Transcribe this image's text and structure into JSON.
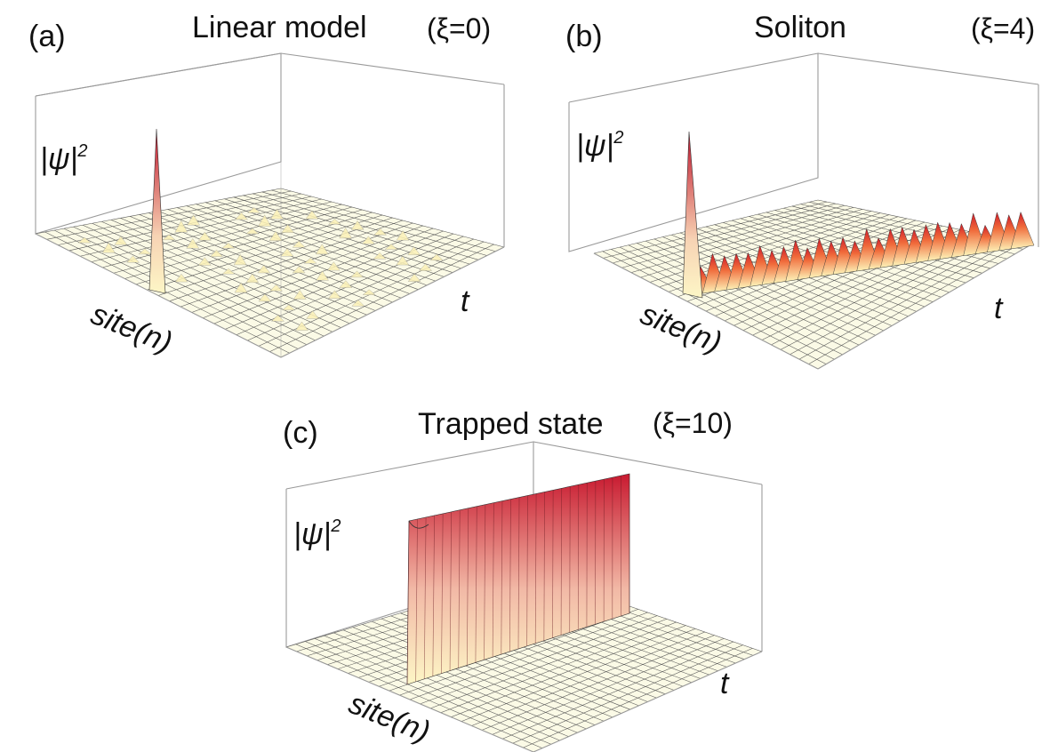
{
  "chart_data": [
    {
      "type": "surface",
      "panel": "(a)",
      "title": "Linear model",
      "parameter": "(ξ=0)",
      "xlabel": "t",
      "ylabel": "site(n)",
      "zlabel": "|ψ|",
      "zlabel_exponent": "2",
      "description_values": {
        "initial_peak": 1.0,
        "late_level": 0.04
      },
      "colors": {
        "high": "#c0142c",
        "mid": "#e8625a",
        "low": "#fdf6c6"
      }
    },
    {
      "type": "surface",
      "panel": "(b)",
      "title": "Soliton",
      "parameter": "(ξ=4)",
      "xlabel": "t",
      "ylabel": "site(n)",
      "zlabel": "|ψ|",
      "zlabel_exponent": "2",
      "description_values": {
        "initial_peak": 1.0,
        "late_level": 0.25
      },
      "colors": {
        "high": "#c0142c",
        "mid": "#e8625a",
        "low": "#fdf6c6"
      }
    },
    {
      "type": "surface",
      "panel": "(c)",
      "title": "Trapped state",
      "parameter": "(ξ=10)",
      "xlabel": "t",
      "ylabel": "site(n)",
      "zlabel": "|ψ|",
      "zlabel_exponent": "2",
      "description_values": {
        "initial_peak": 1.0,
        "late_level": 0.95
      },
      "colors": {
        "high": "#c0142c",
        "mid": "#e8625a",
        "low": "#fdf6c6"
      }
    }
  ]
}
